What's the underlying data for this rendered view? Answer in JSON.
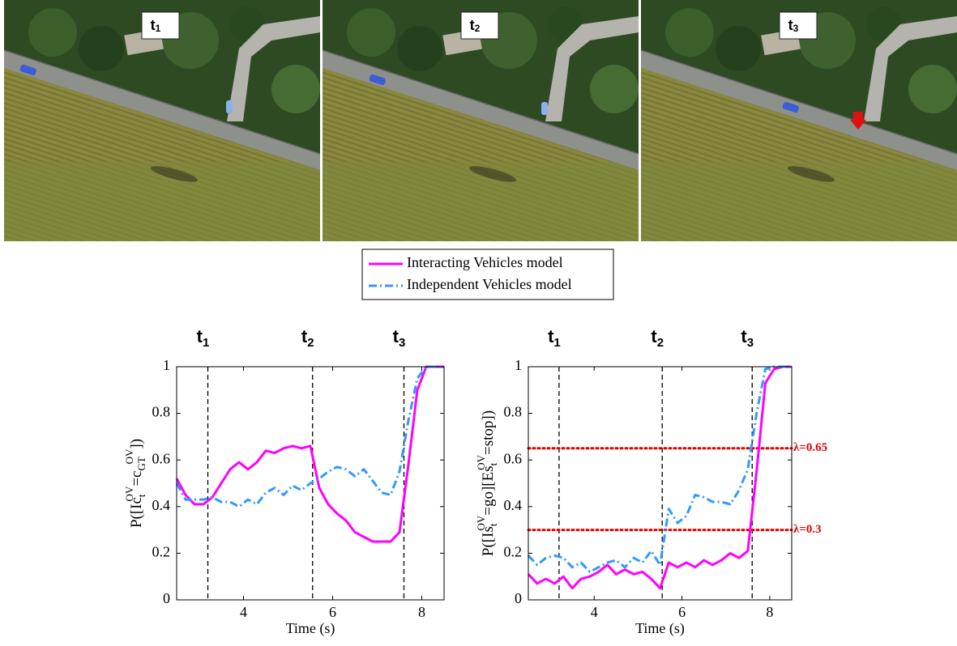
{
  "panels": [
    {
      "label": "t",
      "subscript": "1"
    },
    {
      "label": "t",
      "subscript": "2"
    },
    {
      "label": "t",
      "subscript": "3"
    }
  ],
  "chart_data": [
    {
      "type": "line",
      "xlabel": "Time (s)",
      "ylabel": [
        "P([Ic",
        "t",
        "OV",
        "=c",
        "GT",
        "OV",
        "])"
      ],
      "xlim": [
        2.5,
        8.5
      ],
      "xticks": [
        4,
        6,
        8
      ],
      "ylim": [
        0,
        1
      ],
      "yticks": [
        0,
        0.2,
        0.4,
        0.6,
        0.8,
        1
      ],
      "markers": [
        {
          "x": 3.2,
          "label": "t",
          "subscript": "1"
        },
        {
          "x": 5.55,
          "label": "t",
          "subscript": "2"
        },
        {
          "x": 7.6,
          "label": "t",
          "subscript": "3"
        }
      ],
      "x": [
        2.5,
        2.7,
        2.9,
        3.1,
        3.3,
        3.5,
        3.7,
        3.9,
        4.1,
        4.3,
        4.5,
        4.7,
        4.9,
        5.1,
        5.3,
        5.5,
        5.7,
        5.9,
        6.1,
        6.3,
        6.5,
        6.7,
        6.9,
        7.1,
        7.3,
        7.5,
        7.7,
        7.9,
        8.1,
        8.3,
        8.5
      ],
      "series": [
        {
          "name": "Interacting Vehicles model",
          "color": "#ff00ff",
          "style": "solid",
          "values": [
            0.52,
            0.45,
            0.41,
            0.41,
            0.44,
            0.5,
            0.56,
            0.59,
            0.56,
            0.59,
            0.64,
            0.63,
            0.65,
            0.66,
            0.65,
            0.66,
            0.48,
            0.41,
            0.37,
            0.34,
            0.29,
            0.27,
            0.25,
            0.25,
            0.25,
            0.29,
            0.58,
            0.9,
            1.0,
            1.0,
            1.0
          ]
        },
        {
          "name": "Independent Vehicles model",
          "color": "#3399ff",
          "style": "dashdot",
          "values": [
            0.5,
            0.43,
            0.43,
            0.43,
            0.44,
            0.42,
            0.42,
            0.4,
            0.43,
            0.41,
            0.46,
            0.48,
            0.45,
            0.49,
            0.47,
            0.5,
            0.52,
            0.55,
            0.57,
            0.56,
            0.53,
            0.56,
            0.51,
            0.46,
            0.45,
            0.55,
            0.77,
            0.95,
            1.0,
            1.0,
            1.0
          ]
        }
      ]
    },
    {
      "type": "line",
      "xlabel": "Time (s)",
      "ylabel": [
        "P([Is",
        "t",
        "OV",
        "=go][Es",
        "t",
        "OV",
        "=stop])"
      ],
      "xlim": [
        2.5,
        8.5
      ],
      "xticks": [
        4,
        6,
        8
      ],
      "ylim": [
        0,
        1
      ],
      "yticks": [
        0,
        0.2,
        0.4,
        0.6,
        0.8,
        1
      ],
      "markers": [
        {
          "x": 3.2,
          "label": "t",
          "subscript": "1"
        },
        {
          "x": 5.55,
          "label": "t",
          "subscript": "2"
        },
        {
          "x": 7.6,
          "label": "t",
          "subscript": "3"
        }
      ],
      "thresholds": [
        {
          "value": 0.65,
          "label": "λ=0.65",
          "color": "#e00000"
        },
        {
          "value": 0.3,
          "label": "λ=0.3",
          "color": "#e00000"
        }
      ],
      "x": [
        2.5,
        2.7,
        2.9,
        3.1,
        3.3,
        3.5,
        3.7,
        3.9,
        4.1,
        4.3,
        4.5,
        4.7,
        4.9,
        5.1,
        5.3,
        5.5,
        5.7,
        5.9,
        6.1,
        6.3,
        6.5,
        6.7,
        6.9,
        7.1,
        7.3,
        7.5,
        7.7,
        7.9,
        8.1,
        8.3,
        8.5
      ],
      "series": [
        {
          "name": "Interacting Vehicles model",
          "color": "#ff00ff",
          "style": "solid",
          "values": [
            0.11,
            0.07,
            0.09,
            0.07,
            0.1,
            0.05,
            0.09,
            0.1,
            0.12,
            0.15,
            0.11,
            0.13,
            0.11,
            0.12,
            0.09,
            0.05,
            0.16,
            0.14,
            0.16,
            0.14,
            0.17,
            0.15,
            0.17,
            0.2,
            0.18,
            0.21,
            0.55,
            0.93,
            0.99,
            1.0,
            1.0
          ]
        },
        {
          "name": "Independent Vehicles model",
          "color": "#3399ff",
          "style": "dashdot",
          "values": [
            0.19,
            0.15,
            0.18,
            0.19,
            0.18,
            0.14,
            0.16,
            0.12,
            0.14,
            0.16,
            0.17,
            0.14,
            0.18,
            0.16,
            0.21,
            0.15,
            0.39,
            0.33,
            0.36,
            0.45,
            0.44,
            0.42,
            0.42,
            0.41,
            0.47,
            0.56,
            0.8,
            0.99,
            1.0,
            1.0,
            1.0
          ]
        }
      ]
    }
  ]
}
